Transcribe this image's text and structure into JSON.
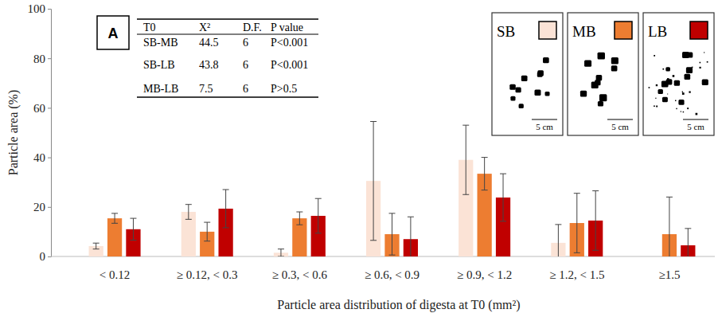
{
  "chart_data": {
    "type": "bar",
    "panel_label": "A",
    "xlabel": "Particle area distribution of digesta at T0 (mm²)",
    "ylabel": "Particle area  (%)",
    "categories": [
      "< 0.12",
      "≥ 0.12, < 0.3",
      "≥ 0.3, < 0.6",
      "≥ 0.6, < 0.9",
      "≥ 0.9, < 1.2",
      "≥ 1.2, < 1.5",
      "≥1.5"
    ],
    "series": [
      {
        "name": "SB",
        "color": "#fbe3d6",
        "values": [
          4.2,
          18,
          1.5,
          30.5,
          39,
          5.5,
          0
        ],
        "errors": [
          1.2,
          3,
          1.5,
          24,
          14,
          7.4,
          null
        ]
      },
      {
        "name": "MB",
        "color": "#ed7d31",
        "values": [
          15.4,
          10,
          15.4,
          9,
          33.4,
          13.5,
          9
        ],
        "errors": [
          2,
          3.8,
          2.6,
          8.4,
          6.6,
          12,
          15
        ]
      },
      {
        "name": "LB",
        "color": "#c00000",
        "values": [
          11,
          19.3,
          16.4,
          7,
          23.8,
          14.5,
          4.5
        ],
        "errors": [
          4.4,
          7.7,
          7,
          9,
          9.6,
          12,
          6.8
        ]
      }
    ],
    "ylim": [
      0,
      100
    ],
    "yticks": [
      0,
      20,
      40,
      60,
      80,
      100
    ],
    "legend": "top-right",
    "table": {
      "columns": [
        "T0",
        "X²",
        "D.F.",
        "P value"
      ],
      "rows": [
        [
          "SB-MB",
          44.5,
          6,
          "P<0.001"
        ],
        [
          "SB-LB",
          43.8,
          6,
          "P<0.001"
        ],
        [
          "MB-LB",
          7.5,
          6,
          "P>0.5"
        ]
      ]
    },
    "inset_scale_label": "5 cm"
  }
}
